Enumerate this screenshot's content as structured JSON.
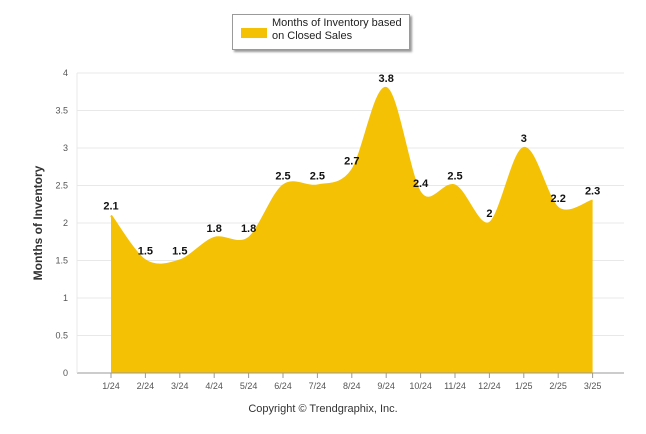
{
  "colors": {
    "area": "#F5C105",
    "grid": "#e8e8e8",
    "axis": "#999999"
  },
  "legend": {
    "label": "Months of Inventory based on Closed Sales",
    "position": "top-center"
  },
  "footer": {
    "copyright": "Copyright © Trendgraphix, Inc."
  },
  "chart_data": {
    "type": "area",
    "categories": [
      "1/24",
      "2/24",
      "3/24",
      "4/24",
      "5/24",
      "6/24",
      "7/24",
      "8/24",
      "9/24",
      "10/24",
      "11/24",
      "12/24",
      "1/25",
      "2/25",
      "3/25"
    ],
    "series": [
      {
        "name": "Months of Inventory based on Closed Sales",
        "values": [
          2.1,
          1.5,
          1.5,
          1.8,
          1.8,
          2.5,
          2.5,
          2.7,
          3.8,
          2.4,
          2.5,
          2,
          3,
          2.2,
          2.3
        ]
      }
    ],
    "data_labels": [
      "2.1",
      "1.5",
      "1.5",
      "1.8",
      "1.8",
      "2.5",
      "2.5",
      "2.7",
      "3.8",
      "2.4",
      "2.5",
      "2",
      "3",
      "2.2",
      "2.3"
    ],
    "ylabel": "Months of Inventory",
    "xlabel": "",
    "ylim": [
      0,
      4
    ],
    "yticks": [
      "0",
      "0.5",
      "1",
      "1.5",
      "2",
      "2.5",
      "3",
      "3.5",
      "4"
    ],
    "yticks_values": [
      0,
      0.5,
      1,
      1.5,
      2,
      2.5,
      3,
      3.5,
      4
    ],
    "grid": true,
    "legend_position": "top-center"
  }
}
